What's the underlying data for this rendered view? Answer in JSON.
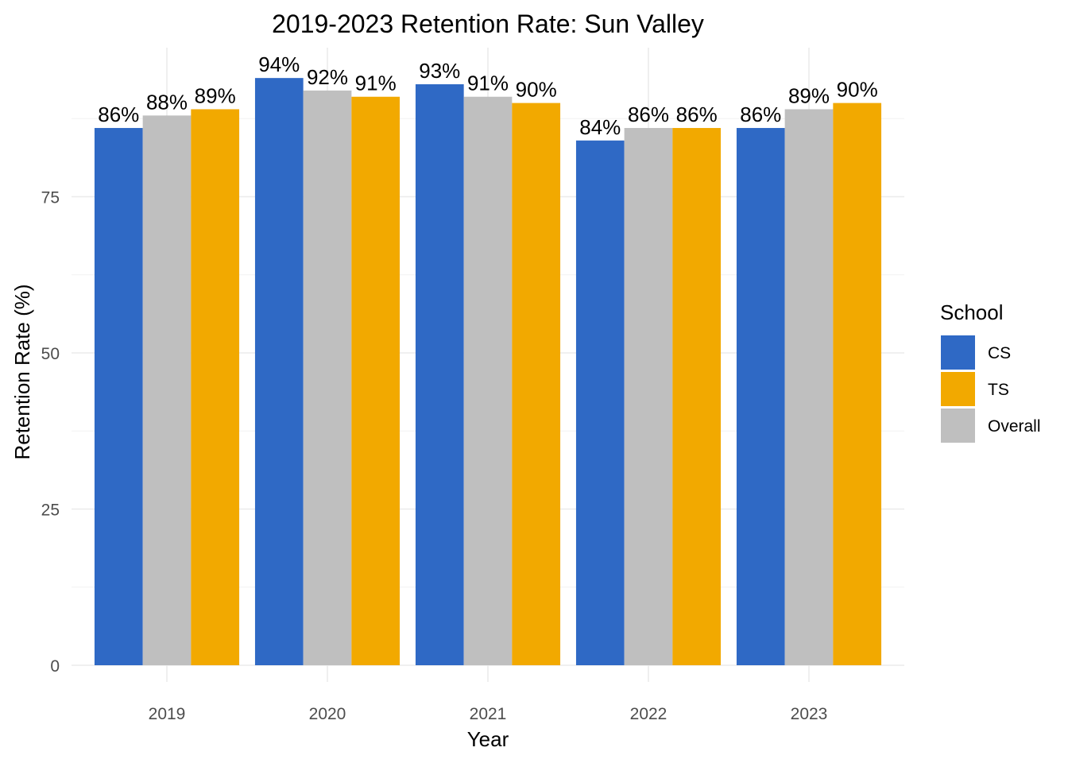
{
  "chart_data": {
    "type": "bar",
    "title": "2019-2023 Retention Rate: Sun Valley",
    "xlabel": "Year",
    "ylabel": "Retention Rate (%)",
    "categories": [
      "2019",
      "2020",
      "2021",
      "2022",
      "2023"
    ],
    "series": [
      {
        "name": "CS",
        "color": "#2f69c5",
        "values": [
          86,
          94,
          93,
          84,
          86
        ],
        "labels": [
          "86%",
          "94%",
          "93%",
          "84%",
          "86%"
        ]
      },
      {
        "name": "Overall",
        "color": "#bfbfbf",
        "values": [
          88,
          92,
          91,
          86,
          89
        ],
        "labels": [
          "88%",
          "92%",
          "91%",
          "86%",
          "89%"
        ]
      },
      {
        "name": "TS",
        "color": "#f2a900",
        "values": [
          89,
          91,
          90,
          86,
          90
        ],
        "labels": [
          "89%",
          "91%",
          "90%",
          "86%",
          "90%"
        ]
      }
    ],
    "ylim": [
      0,
      100
    ],
    "yticks": [
      0,
      25,
      50,
      75
    ],
    "grid": true,
    "legend": {
      "title": "School",
      "position": "right",
      "items": [
        {
          "name": "CS",
          "color": "#2f69c5"
        },
        {
          "name": "TS",
          "color": "#f2a900"
        },
        {
          "name": "Overall",
          "color": "#bfbfbf"
        }
      ]
    }
  }
}
